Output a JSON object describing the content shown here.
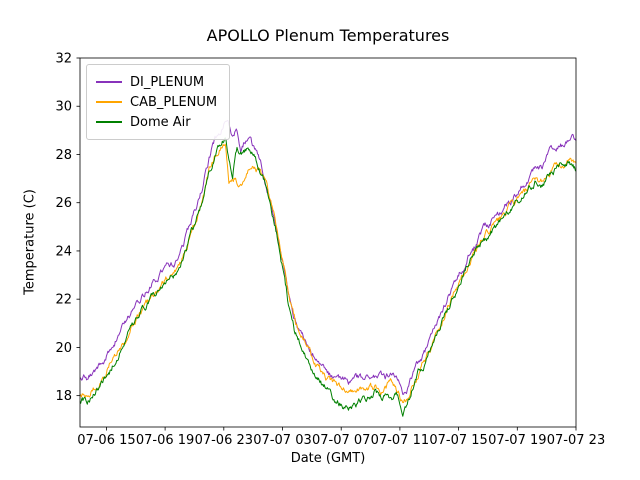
{
  "chart_data": {
    "type": "line",
    "title": "APOLLO Plenum Temperatures",
    "xlabel": "Date (GMT)",
    "ylabel": "Temperature (C)",
    "x_unit": "hours after 07-06 00:00 GMT",
    "xlim": [
      13.2,
      47.0
    ],
    "ylim": [
      16.7,
      32.0
    ],
    "x_ticks": [
      15,
      19,
      23,
      27,
      31,
      35,
      39,
      43,
      47
    ],
    "x_tick_labels": [
      "07-06 15",
      "07-06 19",
      "07-06 23",
      "07-07 03",
      "07-07 07",
      "07-07 11",
      "07-07 15",
      "07-07 19",
      "07-07 23"
    ],
    "y_ticks": [
      18,
      20,
      22,
      24,
      26,
      28,
      30,
      32
    ],
    "legend_position": "upper left",
    "grid": false,
    "noise_amplitude": 0.1,
    "series": [
      {
        "name": "DI_PLENUM",
        "color": "#8833bb",
        "points": [
          [
            13.2,
            18.68
          ],
          [
            13.7,
            18.72
          ],
          [
            14.2,
            18.95
          ],
          [
            14.8,
            19.4
          ],
          [
            15.2,
            19.8
          ],
          [
            15.8,
            20.5
          ],
          [
            16.3,
            21.0
          ],
          [
            16.9,
            21.6
          ],
          [
            17.5,
            22.1
          ],
          [
            18.1,
            22.6
          ],
          [
            18.7,
            23.0
          ],
          [
            19.2,
            23.35
          ],
          [
            19.6,
            23.5
          ],
          [
            20.1,
            24.1
          ],
          [
            20.6,
            24.9
          ],
          [
            21.1,
            25.7
          ],
          [
            21.6,
            26.7
          ],
          [
            22.0,
            27.8
          ],
          [
            22.4,
            28.6
          ],
          [
            22.8,
            29.0
          ],
          [
            23.1,
            29.35
          ],
          [
            23.4,
            29.1
          ],
          [
            23.6,
            28.85
          ],
          [
            23.9,
            29.05
          ],
          [
            24.15,
            28.25
          ],
          [
            24.4,
            28.55
          ],
          [
            24.8,
            28.5
          ],
          [
            25.2,
            28.1
          ],
          [
            25.6,
            27.4
          ],
          [
            26.0,
            26.5
          ],
          [
            26.4,
            25.5
          ],
          [
            26.8,
            24.2
          ],
          [
            27.2,
            22.9
          ],
          [
            27.6,
            21.6
          ],
          [
            28.0,
            20.9
          ],
          [
            28.5,
            20.3
          ],
          [
            29.0,
            19.8
          ],
          [
            29.5,
            19.4
          ],
          [
            30.0,
            19.0
          ],
          [
            30.5,
            18.75
          ],
          [
            31.0,
            18.7
          ],
          [
            31.5,
            18.6
          ],
          [
            32.0,
            18.75
          ],
          [
            32.5,
            18.6
          ],
          [
            33.0,
            18.7
          ],
          [
            33.5,
            18.75
          ],
          [
            34.0,
            18.65
          ],
          [
            34.5,
            18.9
          ],
          [
            34.9,
            18.5
          ],
          [
            35.2,
            18.0
          ],
          [
            35.5,
            18.3
          ],
          [
            35.8,
            18.7
          ],
          [
            36.2,
            19.2
          ],
          [
            36.7,
            19.8
          ],
          [
            37.2,
            20.5
          ],
          [
            37.7,
            21.2
          ],
          [
            38.2,
            21.9
          ],
          [
            38.7,
            22.6
          ],
          [
            39.2,
            23.2
          ],
          [
            39.7,
            23.8
          ],
          [
            40.2,
            24.3
          ],
          [
            40.7,
            24.8
          ],
          [
            41.2,
            25.2
          ],
          [
            41.7,
            25.5
          ],
          [
            42.2,
            25.9
          ],
          [
            42.7,
            26.2
          ],
          [
            43.2,
            26.6
          ],
          [
            43.7,
            27.0
          ],
          [
            44.2,
            27.4
          ],
          [
            44.7,
            27.5
          ],
          [
            45.2,
            28.0
          ],
          [
            45.7,
            28.2
          ],
          [
            46.2,
            28.4
          ],
          [
            46.6,
            28.6
          ],
          [
            47.0,
            28.6
          ]
        ]
      },
      {
        "name": "CAB_PLENUM",
        "color": "#ffa500",
        "points": [
          [
            13.2,
            18.05
          ],
          [
            13.7,
            18.1
          ],
          [
            14.2,
            18.35
          ],
          [
            14.8,
            18.8
          ],
          [
            15.2,
            19.2
          ],
          [
            15.8,
            19.9
          ],
          [
            16.3,
            20.4
          ],
          [
            16.9,
            21.0
          ],
          [
            17.5,
            21.55
          ],
          [
            18.1,
            22.05
          ],
          [
            18.7,
            22.5
          ],
          [
            19.2,
            22.85
          ],
          [
            19.6,
            23.0
          ],
          [
            20.1,
            23.6
          ],
          [
            20.6,
            24.4
          ],
          [
            21.1,
            25.2
          ],
          [
            21.6,
            26.2
          ],
          [
            22.0,
            27.3
          ],
          [
            22.4,
            28.0
          ],
          [
            22.8,
            28.35
          ],
          [
            23.1,
            28.5
          ],
          [
            23.35,
            26.95
          ],
          [
            23.7,
            27.0
          ],
          [
            24.0,
            26.9
          ],
          [
            24.3,
            27.0
          ],
          [
            24.7,
            27.6
          ],
          [
            25.1,
            27.6
          ],
          [
            25.5,
            27.2
          ],
          [
            25.9,
            26.6
          ],
          [
            26.3,
            25.8
          ],
          [
            26.7,
            24.7
          ],
          [
            27.1,
            23.3
          ],
          [
            27.5,
            21.9
          ],
          [
            27.9,
            21.0
          ],
          [
            28.4,
            20.3
          ],
          [
            28.9,
            19.7
          ],
          [
            29.4,
            19.2
          ],
          [
            29.9,
            18.8
          ],
          [
            30.4,
            18.55
          ],
          [
            30.9,
            18.4
          ],
          [
            31.4,
            18.3
          ],
          [
            31.9,
            18.35
          ],
          [
            32.4,
            18.25
          ],
          [
            32.9,
            18.4
          ],
          [
            33.4,
            18.3
          ],
          [
            33.9,
            18.25
          ],
          [
            34.4,
            18.5
          ],
          [
            34.9,
            18.2
          ],
          [
            35.2,
            17.8
          ],
          [
            35.5,
            18.0
          ],
          [
            35.8,
            18.4
          ],
          [
            36.2,
            18.9
          ],
          [
            36.7,
            19.5
          ],
          [
            37.2,
            20.2
          ],
          [
            37.7,
            20.9
          ],
          [
            38.2,
            21.6
          ],
          [
            38.7,
            22.3
          ],
          [
            39.2,
            22.9
          ],
          [
            39.7,
            23.5
          ],
          [
            40.2,
            24.0
          ],
          [
            40.7,
            24.5
          ],
          [
            41.2,
            24.9
          ],
          [
            41.7,
            25.2
          ],
          [
            42.2,
            25.6
          ],
          [
            42.7,
            25.9
          ],
          [
            43.2,
            26.2
          ],
          [
            43.7,
            26.5
          ],
          [
            44.2,
            26.8
          ],
          [
            44.7,
            26.9
          ],
          [
            45.2,
            27.3
          ],
          [
            45.7,
            27.5
          ],
          [
            46.2,
            27.6
          ],
          [
            46.6,
            27.7
          ],
          [
            47.0,
            27.5
          ]
        ]
      },
      {
        "name": "Dome Air",
        "color": "#008000",
        "points": [
          [
            13.2,
            17.8
          ],
          [
            13.7,
            17.85
          ],
          [
            14.2,
            18.1
          ],
          [
            14.8,
            18.6
          ],
          [
            15.2,
            19.0
          ],
          [
            15.8,
            19.75
          ],
          [
            16.3,
            20.3
          ],
          [
            16.9,
            20.9
          ],
          [
            17.5,
            21.5
          ],
          [
            18.1,
            22.0
          ],
          [
            18.7,
            22.45
          ],
          [
            19.2,
            22.8
          ],
          [
            19.6,
            22.95
          ],
          [
            20.1,
            23.55
          ],
          [
            20.6,
            24.35
          ],
          [
            21.1,
            25.15
          ],
          [
            21.6,
            26.15
          ],
          [
            22.0,
            27.25
          ],
          [
            22.4,
            28.0
          ],
          [
            22.8,
            28.45
          ],
          [
            23.1,
            28.6
          ],
          [
            23.4,
            27.6
          ],
          [
            23.6,
            27.2
          ],
          [
            23.9,
            28.3
          ],
          [
            24.2,
            28.2
          ],
          [
            24.6,
            28.3
          ],
          [
            25.0,
            28.0
          ],
          [
            25.4,
            27.5
          ],
          [
            25.8,
            26.8
          ],
          [
            26.2,
            25.9
          ],
          [
            26.6,
            24.8
          ],
          [
            27.0,
            23.3
          ],
          [
            27.4,
            21.8
          ],
          [
            27.8,
            20.8
          ],
          [
            28.3,
            20.0
          ],
          [
            28.8,
            19.4
          ],
          [
            29.3,
            18.9
          ],
          [
            29.8,
            18.4
          ],
          [
            30.3,
            18.0
          ],
          [
            30.8,
            17.7
          ],
          [
            31.3,
            17.55
          ],
          [
            31.8,
            17.6
          ],
          [
            32.3,
            17.7
          ],
          [
            32.8,
            17.9
          ],
          [
            33.3,
            18.1
          ],
          [
            33.8,
            17.9
          ],
          [
            34.3,
            17.95
          ],
          [
            34.8,
            18.0
          ],
          [
            35.2,
            17.45
          ],
          [
            35.5,
            17.7
          ],
          [
            35.8,
            18.2
          ],
          [
            36.2,
            18.8
          ],
          [
            36.7,
            19.4
          ],
          [
            37.2,
            20.1
          ],
          [
            37.7,
            20.8
          ],
          [
            38.2,
            21.5
          ],
          [
            38.7,
            22.2
          ],
          [
            39.2,
            22.8
          ],
          [
            39.7,
            23.4
          ],
          [
            40.2,
            23.9
          ],
          [
            40.7,
            24.4
          ],
          [
            41.2,
            24.8
          ],
          [
            41.7,
            25.1
          ],
          [
            42.2,
            25.5
          ],
          [
            42.7,
            25.8
          ],
          [
            43.2,
            26.1
          ],
          [
            43.7,
            26.4
          ],
          [
            44.2,
            26.8
          ],
          [
            44.7,
            26.7
          ],
          [
            45.2,
            27.2
          ],
          [
            45.7,
            27.4
          ],
          [
            46.2,
            27.5
          ],
          [
            46.6,
            27.6
          ],
          [
            47.0,
            27.3
          ]
        ]
      }
    ]
  }
}
